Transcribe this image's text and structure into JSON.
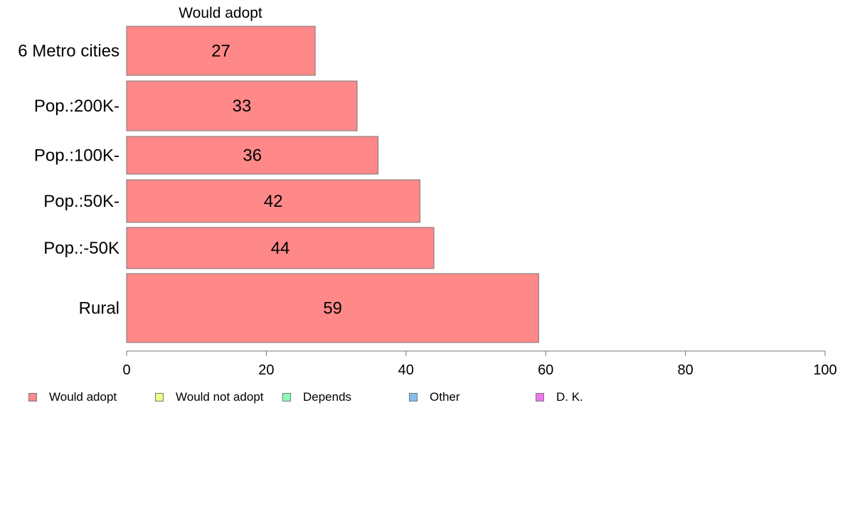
{
  "chart_data": {
    "type": "bar",
    "orientation": "horizontal",
    "title": "Would adopt",
    "categories": [
      "6 Metro cities",
      "Pop.:200K-",
      "Pop.:100K-",
      "Pop.:50K-",
      "Pop.:-50K",
      "Rural"
    ],
    "series": [
      {
        "name": "Would adopt",
        "values": [
          27,
          33,
          36,
          42,
          44,
          59
        ]
      }
    ],
    "data_labels": [
      "27",
      "33",
      "36",
      "42",
      "44",
      "59"
    ],
    "xlim": [
      0,
      100
    ],
    "x_ticks": [
      0,
      20,
      40,
      60,
      80,
      100
    ],
    "x_tick_labels": [
      "0",
      "20",
      "40",
      "60",
      "80",
      "100"
    ],
    "grid": false,
    "legend_position": "bottom",
    "legend": [
      {
        "label": "Would adopt",
        "color": "#ff8888"
      },
      {
        "label": "Would not adopt",
        "color": "#eeff88"
      },
      {
        "label": "Depends",
        "color": "#88ffbb"
      },
      {
        "label": "Other",
        "color": "#88bbee"
      },
      {
        "label": "D. K.",
        "color": "#ee77ee"
      }
    ],
    "bar_color": "#ff8888"
  }
}
